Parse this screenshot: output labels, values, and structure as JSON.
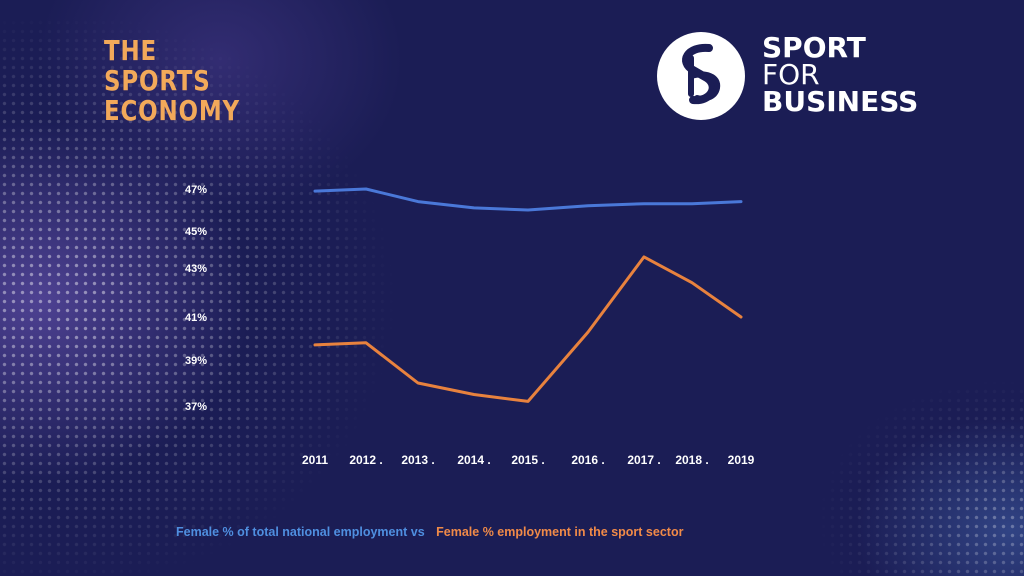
{
  "branding": {
    "left_lines": [
      "THE",
      "SPORTS",
      "ECONOMY"
    ],
    "right_line1": "SPORT",
    "right_line2": "FOR",
    "right_line3": "BUSINESS",
    "left_color": "#f2a95a",
    "background_color": "#1b1d55"
  },
  "chart_data": {
    "type": "line",
    "x": [
      "2011",
      "2012",
      "2013",
      "2014",
      "2015",
      "2016",
      "2017",
      "2018",
      "2019"
    ],
    "x_tick_labels": [
      "2011",
      "2012 .",
      "2013 .",
      "2014 .",
      "2015 .",
      "2016 .",
      "2017 .",
      "2018 .",
      "2019"
    ],
    "y_ticks": [
      {
        "value": 47,
        "label": "47%"
      },
      {
        "value": 45,
        "label": "45%"
      },
      {
        "value": 43,
        "label": "43%"
      },
      {
        "value": 41,
        "label": "41%"
      },
      {
        "value": 39,
        "label": "39%"
      },
      {
        "value": 37,
        "label": "37%"
      }
    ],
    "series": [
      {
        "name": "Female % of total national employment vs",
        "color": "#4a78d8",
        "values": [
          46.9,
          47.0,
          46.4,
          46.1,
          46.0,
          46.2,
          46.3,
          46.3,
          46.4
        ]
      },
      {
        "name": "Female % employment in the sport sector",
        "color": "#e8823e",
        "values": [
          39.7,
          39.8,
          38.0,
          37.5,
          37.2,
          40.3,
          43.6,
          42.4,
          41.0
        ]
      }
    ],
    "grid": false,
    "legend_position": "bottom-left"
  }
}
